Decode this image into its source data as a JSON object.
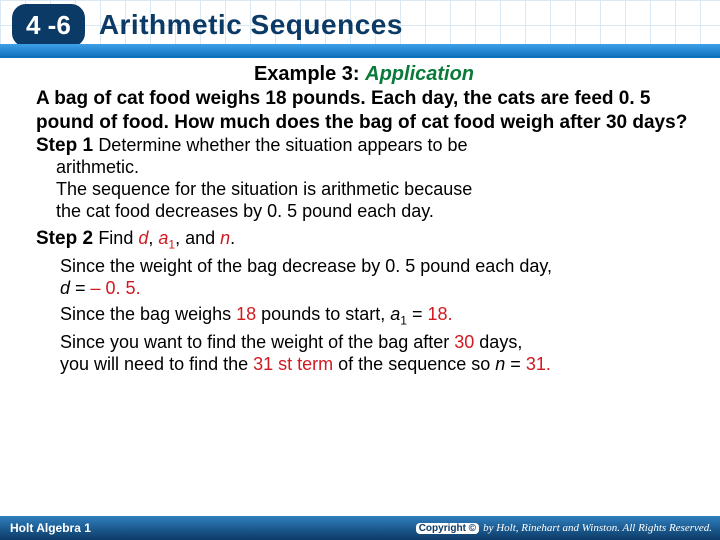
{
  "header": {
    "lesson_number": "4 -6",
    "lesson_title": "Arithmetic Sequences"
  },
  "example": {
    "label": "Example 3: ",
    "kind": "Application"
  },
  "problem": "A bag of cat food weighs 18 pounds. Each day, the cats are feed 0. 5 pound of food. How much does the bag of cat food weigh after 30 days?",
  "step1": {
    "label": "Step 1 ",
    "line1": "Determine whether the situation appears to be",
    "line2": "arithmetic.",
    "line3": "The sequence for the situation is arithmetic because",
    "line4": "the cat food decreases by 0. 5 pound each day."
  },
  "step2": {
    "label": "Step 2 ",
    "lead": "Find ",
    "d": "d",
    "comma1": ", ",
    "a": "a",
    "sub1": "1",
    "comma2": ", and ",
    "n": "n",
    "period": ".",
    "p1a": "Since the weight of the bag decrease by 0. 5 pound each day,",
    "p1b_pre": "d",
    "p1b_eq": " = ",
    "p1b_val": "– 0. 5.",
    "p2_pre": "Since the bag weighs ",
    "p2_red1": "18",
    "p2_mid": " pounds to start, ",
    "p2_a": "a",
    "p2_sub": "1",
    "p2_eq": " = ",
    "p2_val": "18.",
    "p3_l1_pre": "Since you want to find the weight of the bag after ",
    "p3_l1_red": "30",
    "p3_l1_post": " days,",
    "p3_l2_pre": "you will need to find the ",
    "p3_l2_red": "31 st term",
    "p3_l2_mid": " of the sequence so ",
    "p3_l2_n": "n",
    "p3_l2_eq": " = ",
    "p3_l2_val": "31."
  },
  "footer": {
    "left": "Holt Algebra 1",
    "copy": "Copyright ©",
    "right": "by Holt, Rinehart and Winston. All Rights Reserved."
  },
  "colors": {
    "brand_dark": "#0b3a66",
    "accent_green": "#0a7a3a",
    "accent_red": "#d11920"
  }
}
